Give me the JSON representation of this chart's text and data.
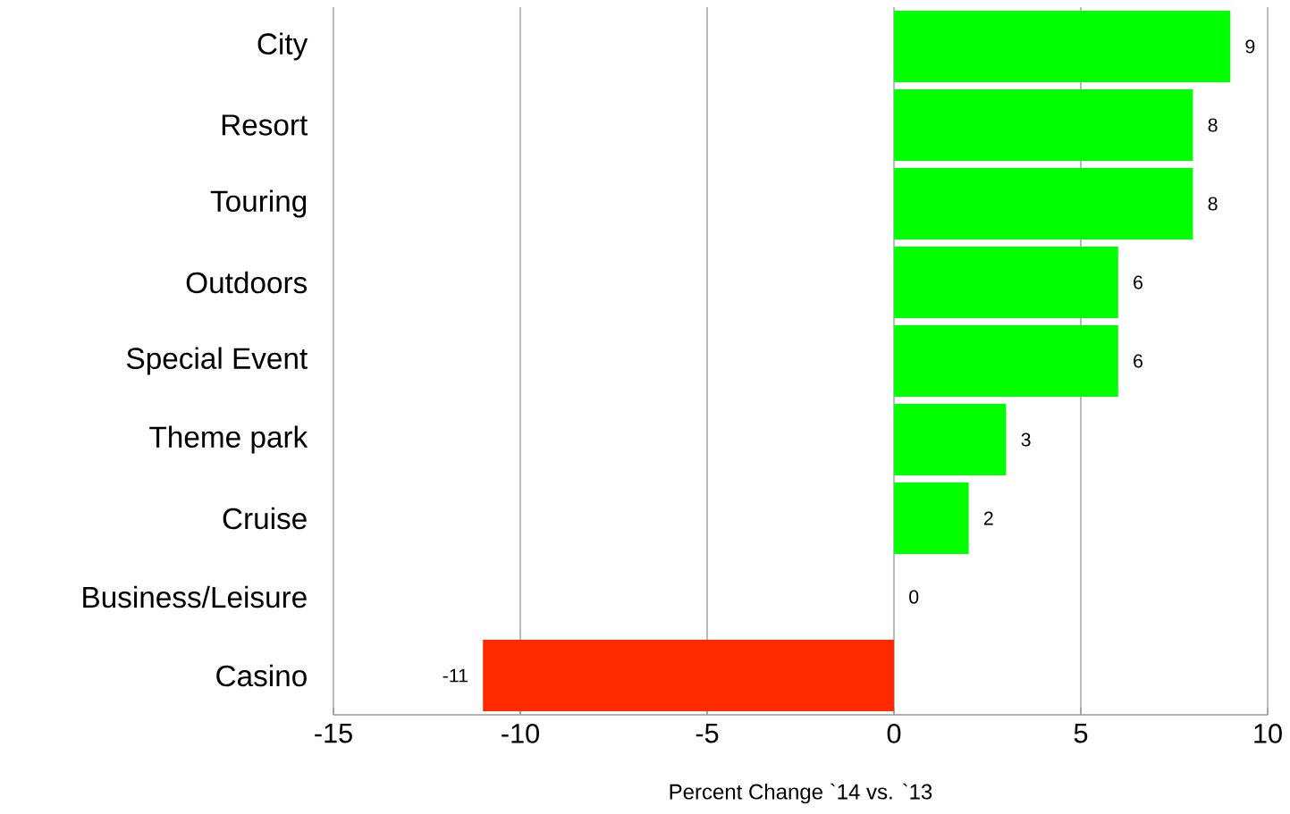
{
  "chart_data": {
    "type": "bar",
    "orientation": "horizontal",
    "xlabel": "Percent Change `14 vs. `13",
    "categories": [
      "City",
      "Resort",
      "Touring",
      "Outdoors",
      "Special Event",
      "Theme park",
      "Cruise",
      "Business/Leisure",
      "Casino"
    ],
    "values": [
      9,
      8,
      8,
      6,
      6,
      3,
      2,
      0,
      -11
    ],
    "colors": [
      "#00ff00",
      "#00ff00",
      "#00ff00",
      "#00ff00",
      "#00ff00",
      "#00ff00",
      "#00ff00",
      "#00ff00",
      "#ff2a00"
    ],
    "xlim": [
      -15,
      10
    ],
    "xticks": [
      -15,
      -10,
      -5,
      0,
      5,
      10
    ],
    "grid": "x",
    "data_labels": true
  }
}
